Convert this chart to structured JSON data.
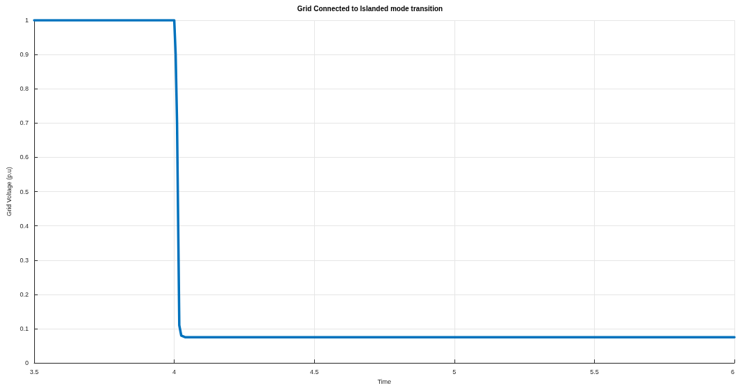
{
  "chart_data": {
    "type": "line",
    "title": "Grid Connected to Islanded mode transition",
    "xlabel": "Time",
    "ylabel": "Grid Voltage (p.u)",
    "series": [
      {
        "color": "#0072bd",
        "x": [
          3.5,
          4,
          4.005,
          4.01,
          4.018,
          4.025,
          4.04,
          6
        ],
        "values": [
          1,
          1,
          0.9,
          0.7,
          0.11,
          0.08,
          0.075,
          0.075
        ]
      }
    ],
    "xlim": [
      3.5,
      6
    ],
    "xticks": [
      3.5,
      4,
      4.5,
      5,
      5.5,
      6
    ],
    "ylim": [
      0,
      1
    ],
    "yticks": [
      0,
      0.1,
      0.2,
      0.3,
      0.4,
      0.5,
      0.6,
      0.7,
      0.8,
      0.9,
      1
    ],
    "grid": true,
    "marker": "none",
    "line_style": "solid"
  }
}
